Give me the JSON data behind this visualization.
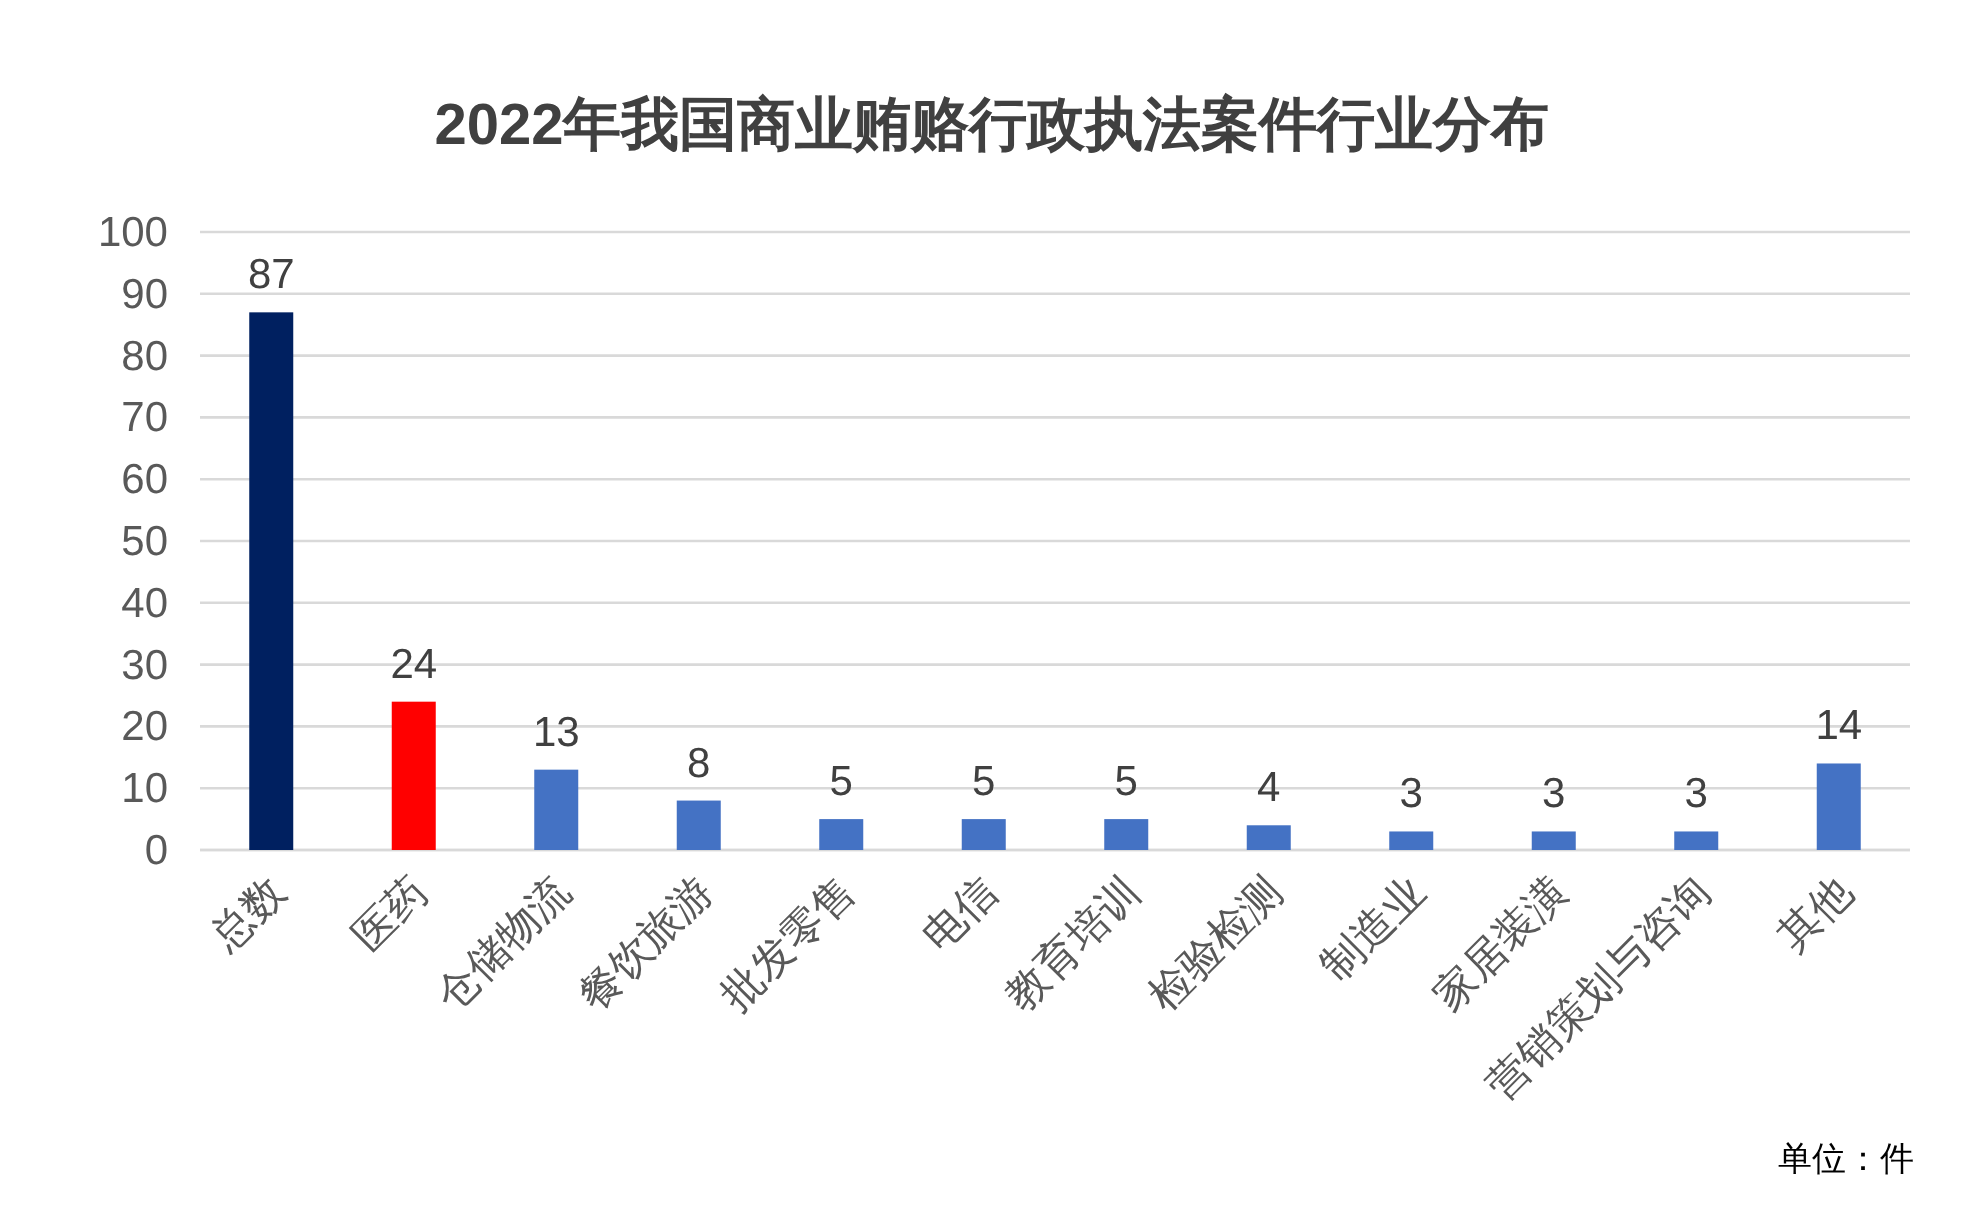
{
  "chart_data": {
    "type": "bar",
    "title": "2022年我国商业贿赂行政执法案件行业分布",
    "categories": [
      "总数",
      "医药",
      "仓储物流",
      "餐饮旅游",
      "批发零售",
      "电信",
      "教育培训",
      "检验检测",
      "制造业",
      "家居装潢",
      "营销策划与咨询",
      "其他"
    ],
    "values": [
      87,
      24,
      13,
      8,
      5,
      5,
      5,
      4,
      3,
      3,
      3,
      14
    ],
    "colors": [
      "#002060",
      "#ff0000",
      "#4472c4",
      "#4472c4",
      "#4472c4",
      "#4472c4",
      "#4472c4",
      "#4472c4",
      "#4472c4",
      "#4472c4",
      "#4472c4",
      "#4472c4"
    ],
    "ylim": [
      0,
      100
    ],
    "yticks": [
      0,
      10,
      20,
      30,
      40,
      50,
      60,
      70,
      80,
      90,
      100
    ],
    "grid": "y",
    "data_labels": true,
    "annotations": [
      "单位：件"
    ]
  }
}
